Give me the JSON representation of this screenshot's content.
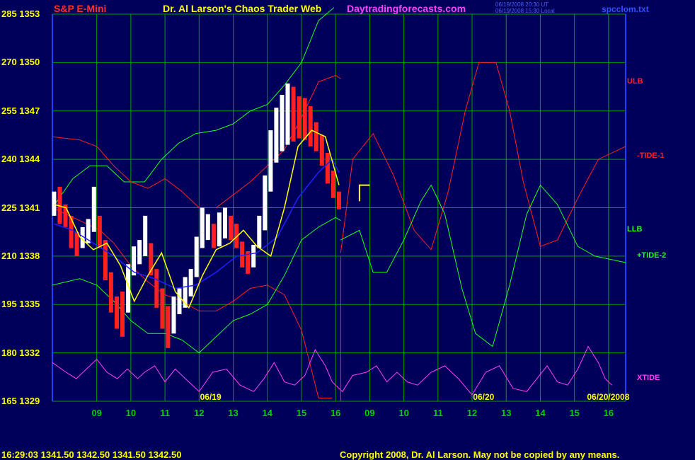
{
  "header": {
    "symbol": "S&P E-Mini",
    "title": "Dr. Al Larson's Chaos Trader Web",
    "site": "Daytradingforecasts.com",
    "stamp1": "06/19/2008 20:30 UT",
    "stamp2": "06/19/2008 15:30 Local",
    "file": "spcclom.txt"
  },
  "footer": {
    "quote": "16:29:03  1341.50 1342.50 1341.50 1342.50",
    "copyright": "Copyright 2008, Dr. Al Larson. May not be copied by any means."
  },
  "colors": {
    "background": "#00005a",
    "grid": "#00a000",
    "price_up": "#ffffff",
    "price_down": "#ff2020",
    "avg_fast": "#ffff00",
    "avg_slow": "#2020ff",
    "ulb": "#ff2020",
    "llb": "#20ff20",
    "xtide": "#ff40ff"
  },
  "chart_data": {
    "type": "line",
    "left_axis_labels": [
      {
        "value": 285,
        "price": 1353,
        "text": "285  1353"
      },
      {
        "value": 270,
        "price": 1350,
        "text": "270  1350"
      },
      {
        "value": 255,
        "price": 1347,
        "text": "255  1347"
      },
      {
        "value": 240,
        "price": 1344,
        "text": "240  1344"
      },
      {
        "value": 225,
        "price": 1341,
        "text": "225  1341"
      },
      {
        "value": 210,
        "price": 1338,
        "text": "210  1338"
      },
      {
        "value": 195,
        "price": 1335,
        "text": "195  1335"
      },
      {
        "value": 180,
        "price": 1332,
        "text": "180  1332"
      },
      {
        "value": 165,
        "price": 1329,
        "text": "165  1329"
      }
    ],
    "ylim": [
      165,
      285
    ],
    "price_lim": [
      1329,
      1353
    ],
    "x_hour_labels": [
      "09",
      "10",
      "11",
      "12",
      "13",
      "14",
      "15",
      "16",
      "09",
      "10",
      "11",
      "12",
      "13",
      "14",
      "15",
      "16"
    ],
    "x_hour_positions": [
      8.5,
      9.5,
      10.5,
      11.5,
      12.5,
      13.5,
      14.5,
      15.5,
      16.5,
      17.5,
      18.5,
      19.5,
      20.5,
      21.5,
      22.5,
      23.5
    ],
    "xlim": [
      7.2,
      24.0
    ],
    "day_labels": [
      {
        "text": "06/19",
        "x": 11.9,
        "color": "#ffff00"
      },
      {
        "text": "06/20",
        "x": 19.9,
        "color": "#ffff00"
      },
      {
        "text": "06/20/2008",
        "x": 23.8,
        "color": "#ffff00"
      }
    ],
    "grid": true,
    "now_x": 15.65,
    "series_labels": [
      {
        "text": "ULB",
        "color": "#ff2020",
        "value": 264
      },
      {
        "text": "-TIDE-1",
        "color": "#ff2020",
        "value": 241
      },
      {
        "text": "LLB",
        "color": "#20ff20",
        "value": 218
      },
      {
        "text": "+TIDE-2",
        "color": "#20ff20",
        "value": 210
      },
      {
        "text": "XTIDE",
        "color": "#ff40ff",
        "value": 172
      }
    ],
    "price_hl": [
      [
        1340.5,
        1342.0
      ],
      [
        1340.0,
        1342.3
      ],
      [
        1339.8,
        1341.2
      ],
      [
        1338.5,
        1340.5
      ],
      [
        1338.0,
        1339.5
      ],
      [
        1338.5,
        1339.8
      ],
      [
        1338.8,
        1340.3
      ],
      [
        1339.5,
        1342.3
      ],
      [
        1338.5,
        1340.5
      ],
      [
        1336.5,
        1339.0
      ],
      [
        1334.5,
        1337.0
      ],
      [
        1333.5,
        1335.5
      ],
      [
        1333.0,
        1335.8
      ],
      [
        1334.5,
        1337.5
      ],
      [
        1336.8,
        1338.6
      ],
      [
        1337.5,
        1339.0
      ],
      [
        1338.0,
        1340.5
      ],
      [
        1336.8,
        1338.8
      ],
      [
        1334.8,
        1337.2
      ],
      [
        1333.5,
        1336.0
      ],
      [
        1332.3,
        1334.9
      ],
      [
        1333.2,
        1335.5
      ],
      [
        1334.4,
        1336.0
      ],
      [
        1334.8,
        1336.7
      ],
      [
        1335.5,
        1337.2
      ],
      [
        1336.7,
        1339.2
      ],
      [
        1338.5,
        1341.0
      ],
      [
        1339.0,
        1340.6
      ],
      [
        1338.5,
        1340.0
      ],
      [
        1338.6,
        1340.7
      ],
      [
        1339.1,
        1341.0
      ],
      [
        1339.0,
        1340.5
      ],
      [
        1338.5,
        1340.0
      ],
      [
        1337.3,
        1338.9
      ],
      [
        1336.9,
        1338.3
      ],
      [
        1337.3,
        1338.7
      ],
      [
        1338.5,
        1340.5
      ],
      [
        1339.6,
        1343.0
      ],
      [
        1342.0,
        1345.8
      ],
      [
        1343.8,
        1347.2
      ],
      [
        1344.5,
        1348.0
      ],
      [
        1344.9,
        1348.7
      ],
      [
        1345.1,
        1348.5
      ],
      [
        1345.3,
        1347.9
      ],
      [
        1345.2,
        1347.8
      ],
      [
        1344.8,
        1347.3
      ],
      [
        1344.5,
        1346.3
      ],
      [
        1343.6,
        1345.5
      ],
      [
        1342.5,
        1344.4
      ],
      [
        1341.6,
        1343.3
      ],
      [
        1340.9,
        1342.0
      ]
    ],
    "price_x_range": [
      7.25,
      15.6
    ],
    "ulb": [
      [
        7.2,
        247
      ],
      [
        8.0,
        246
      ],
      [
        8.5,
        244
      ],
      [
        9.0,
        238
      ],
      [
        9.5,
        233
      ],
      [
        10.0,
        231
      ],
      [
        10.5,
        234
      ],
      [
        11.0,
        230
      ],
      [
        11.5,
        225
      ],
      [
        12.0,
        225
      ],
      [
        12.5,
        229
      ],
      [
        13.0,
        233
      ],
      [
        13.5,
        238
      ],
      [
        14.0,
        243
      ],
      [
        14.5,
        253
      ],
      [
        15.0,
        264
      ],
      [
        15.5,
        266
      ],
      [
        15.65,
        265
      ]
    ],
    "ulb_fcst": [
      [
        15.65,
        211
      ],
      [
        16.0,
        240
      ],
      [
        16.6,
        248
      ],
      [
        17.2,
        235
      ],
      [
        17.8,
        218
      ],
      [
        18.3,
        212
      ],
      [
        18.8,
        230
      ],
      [
        19.3,
        255
      ],
      [
        19.7,
        270
      ],
      [
        20.2,
        270
      ],
      [
        20.6,
        255
      ],
      [
        21.0,
        233
      ],
      [
        21.5,
        213
      ],
      [
        22.0,
        215
      ],
      [
        22.6,
        228
      ],
      [
        23.2,
        240
      ],
      [
        24.0,
        244
      ]
    ],
    "llb": [
      [
        7.2,
        201
      ],
      [
        8.0,
        203
      ],
      [
        8.5,
        201
      ],
      [
        9.0,
        196
      ],
      [
        9.5,
        190
      ],
      [
        10.0,
        186
      ],
      [
        10.5,
        186
      ],
      [
        11.0,
        184
      ],
      [
        11.5,
        180
      ],
      [
        12.0,
        185
      ],
      [
        12.5,
        190
      ],
      [
        13.0,
        192
      ],
      [
        13.5,
        195
      ],
      [
        14.0,
        204
      ],
      [
        14.5,
        215
      ],
      [
        15.0,
        219
      ],
      [
        15.5,
        222
      ],
      [
        15.65,
        221
      ]
    ],
    "llb_fcst": [
      [
        15.65,
        215
      ],
      [
        16.2,
        218
      ],
      [
        16.6,
        205
      ],
      [
        17.0,
        205
      ],
      [
        17.5,
        215
      ],
      [
        18.0,
        227
      ],
      [
        18.3,
        232
      ],
      [
        18.7,
        223
      ],
      [
        19.2,
        200
      ],
      [
        19.6,
        186
      ],
      [
        20.1,
        182
      ],
      [
        20.6,
        201
      ],
      [
        21.1,
        223
      ],
      [
        21.5,
        232
      ],
      [
        22.0,
        226
      ],
      [
        22.6,
        213
      ],
      [
        23.1,
        210
      ],
      [
        24.0,
        208
      ]
    ],
    "upper_env": [
      [
        7.2,
        225
      ],
      [
        7.8,
        234
      ],
      [
        8.3,
        238
      ],
      [
        8.8,
        238
      ],
      [
        9.3,
        233
      ],
      [
        9.9,
        233
      ],
      [
        10.4,
        240
      ],
      [
        10.9,
        245
      ],
      [
        11.4,
        248
      ],
      [
        12.0,
        249
      ],
      [
        12.5,
        251
      ],
      [
        13.0,
        255
      ],
      [
        13.5,
        257
      ],
      [
        14.0,
        263
      ],
      [
        14.5,
        270
      ],
      [
        15.0,
        283
      ],
      [
        15.45,
        287
      ]
    ],
    "lower_env": [
      [
        7.2,
        225
      ],
      [
        8.0,
        221
      ],
      [
        8.6,
        218
      ],
      [
        9.0,
        214
      ],
      [
        9.5,
        207
      ],
      [
        10.0,
        202
      ],
      [
        10.5,
        198
      ],
      [
        11.0,
        196
      ],
      [
        11.5,
        193
      ],
      [
        12.0,
        193
      ],
      [
        12.5,
        196
      ],
      [
        13.0,
        200
      ],
      [
        13.5,
        201
      ],
      [
        14.0,
        198
      ],
      [
        14.5,
        187
      ],
      [
        15.0,
        166
      ],
      [
        15.4,
        166
      ]
    ],
    "xtide": [
      [
        7.2,
        177
      ],
      [
        7.6,
        174
      ],
      [
        7.9,
        172
      ],
      [
        8.2,
        175
      ],
      [
        8.5,
        178
      ],
      [
        8.8,
        174
      ],
      [
        9.1,
        172
      ],
      [
        9.4,
        175
      ],
      [
        9.7,
        172
      ],
      [
        9.9,
        174
      ],
      [
        10.2,
        176
      ],
      [
        10.5,
        171
      ],
      [
        10.8,
        175
      ],
      [
        11.1,
        172
      ],
      [
        11.5,
        168
      ],
      [
        11.9,
        174
      ],
      [
        12.3,
        175
      ],
      [
        12.7,
        170
      ],
      [
        13.1,
        168
      ],
      [
        13.4,
        172
      ],
      [
        13.7,
        177
      ],
      [
        14.0,
        171
      ],
      [
        14.3,
        170
      ],
      [
        14.6,
        173
      ],
      [
        14.9,
        181
      ],
      [
        15.2,
        176
      ],
      [
        15.4,
        171
      ],
      [
        15.7,
        168
      ],
      [
        16.0,
        173
      ],
      [
        16.4,
        174
      ],
      [
        16.7,
        176
      ],
      [
        17.0,
        171
      ],
      [
        17.3,
        174
      ],
      [
        17.6,
        171
      ],
      [
        17.9,
        170
      ],
      [
        18.3,
        174
      ],
      [
        18.7,
        176
      ],
      [
        19.1,
        172
      ],
      [
        19.5,
        167
      ],
      [
        19.9,
        174
      ],
      [
        20.3,
        176
      ],
      [
        20.7,
        169
      ],
      [
        21.1,
        168
      ],
      [
        21.4,
        172
      ],
      [
        21.7,
        176
      ],
      [
        22.0,
        171
      ],
      [
        22.3,
        170
      ],
      [
        22.6,
        175
      ],
      [
        22.9,
        182
      ],
      [
        23.2,
        177
      ],
      [
        23.4,
        172
      ],
      [
        23.6,
        170
      ]
    ],
    "avg_fast": [
      [
        7.25,
        226
      ],
      [
        7.6,
        225
      ],
      [
        8.0,
        216
      ],
      [
        8.4,
        212
      ],
      [
        8.8,
        214
      ],
      [
        9.2,
        207
      ],
      [
        9.6,
        196
      ],
      [
        10.0,
        204
      ],
      [
        10.4,
        211
      ],
      [
        10.8,
        199
      ],
      [
        11.2,
        194
      ],
      [
        11.6,
        204
      ],
      [
        12.0,
        212
      ],
      [
        12.4,
        214
      ],
      [
        12.8,
        218
      ],
      [
        13.2,
        213
      ],
      [
        13.6,
        210
      ],
      [
        14.0,
        225
      ],
      [
        14.4,
        244
      ],
      [
        14.8,
        249
      ],
      [
        15.2,
        247
      ],
      [
        15.6,
        232
      ]
    ],
    "avg_slow": [
      [
        7.25,
        220
      ],
      [
        7.8,
        218
      ],
      [
        8.4,
        214
      ],
      [
        9.0,
        210
      ],
      [
        9.6,
        205
      ],
      [
        10.2,
        203
      ],
      [
        10.8,
        200
      ],
      [
        11.4,
        201
      ],
      [
        12.0,
        205
      ],
      [
        12.6,
        210
      ],
      [
        13.2,
        211
      ],
      [
        13.8,
        216
      ],
      [
        14.4,
        228
      ],
      [
        15.0,
        236
      ],
      [
        15.4,
        240
      ],
      [
        15.6,
        236
      ]
    ],
    "flag": [
      [
        16.2,
        227
      ],
      [
        16.2,
        232
      ],
      [
        16.5,
        232
      ]
    ]
  }
}
